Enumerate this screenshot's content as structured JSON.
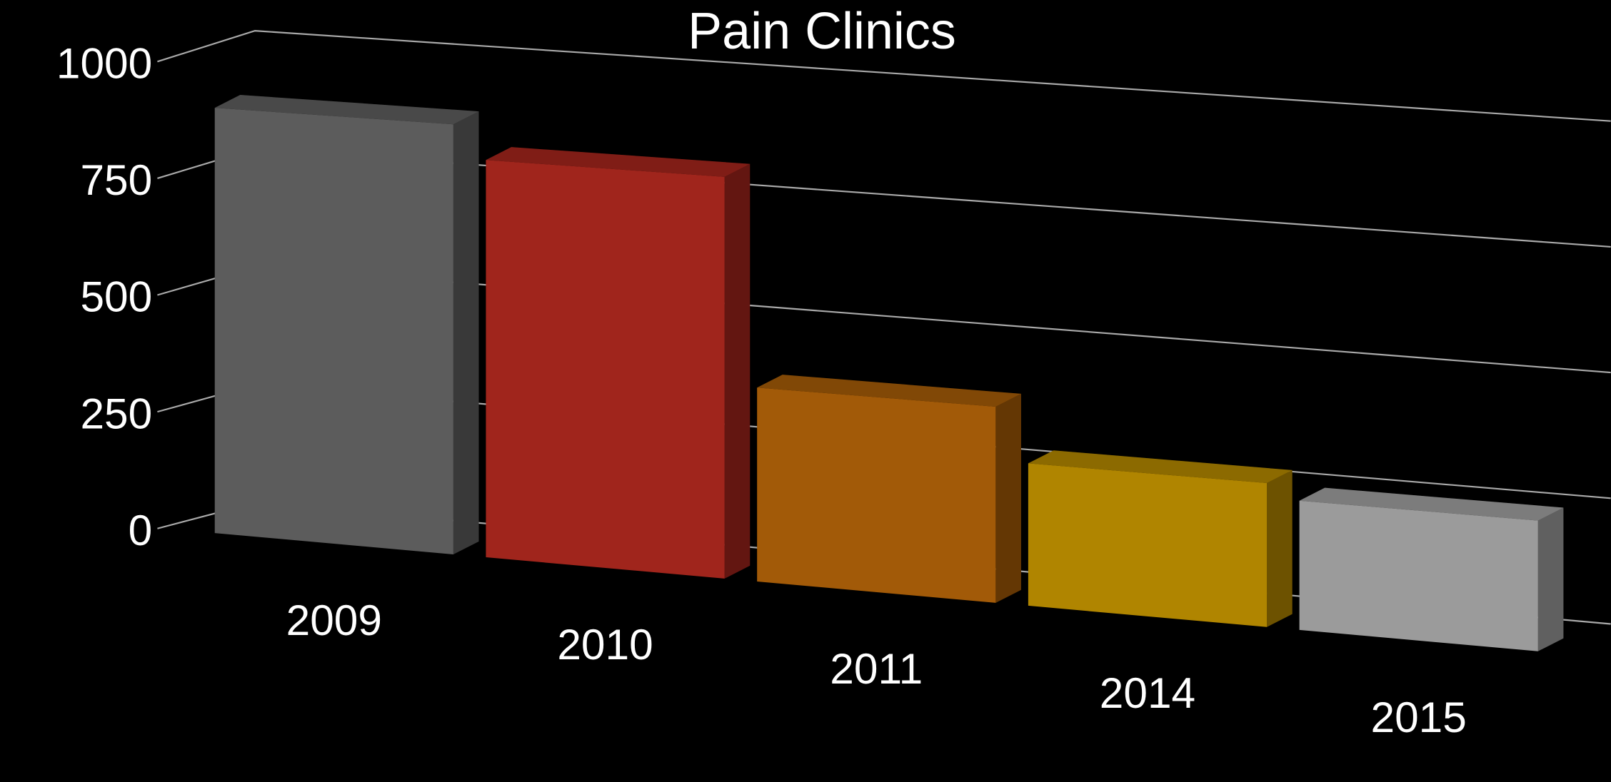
{
  "chart_data": {
    "type": "bar3d",
    "title": "Pain Clinics",
    "categories": [
      "2009",
      "2010",
      "2011",
      "2014",
      "2015"
    ],
    "values": [
      900,
      830,
      400,
      290,
      260
    ],
    "colors": [
      "#5c5c5c",
      "#a0251c",
      "#a25a08",
      "#b08500",
      "#9b9b9b"
    ],
    "ylim": [
      0,
      1000
    ],
    "yticks": [
      0,
      250,
      500,
      750,
      1000
    ],
    "grid": true
  }
}
